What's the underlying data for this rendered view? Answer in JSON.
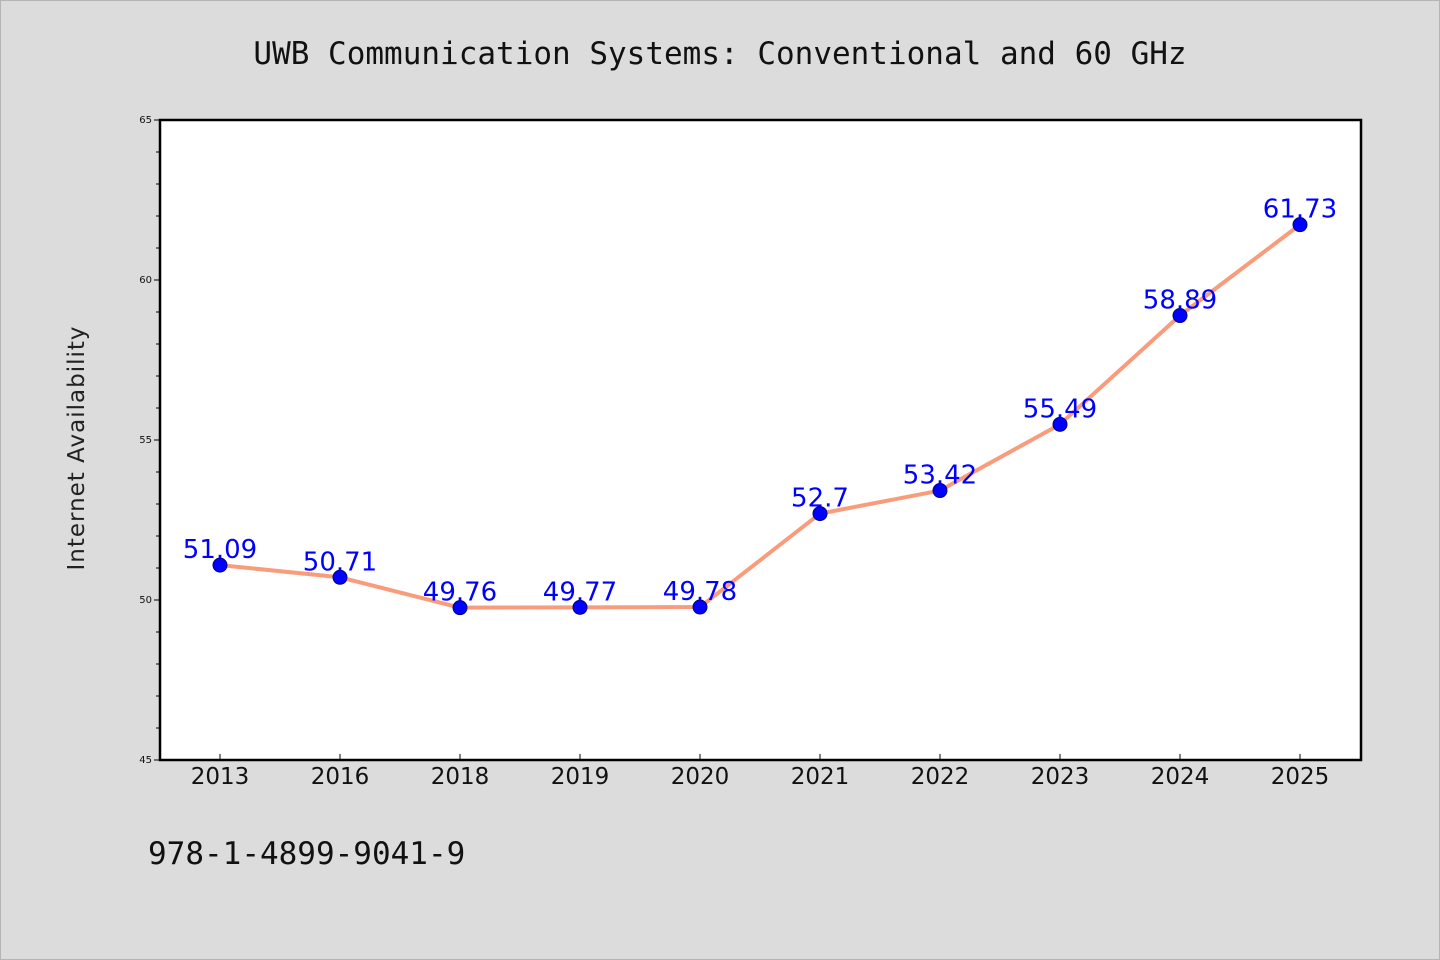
{
  "chart_data": {
    "type": "line",
    "title": "UWB Communication Systems: Conventional and 60 GHz",
    "xlabel": "",
    "ylabel": "Internet Availability",
    "categories": [
      "2013",
      "2016",
      "2018",
      "2019",
      "2020",
      "2021",
      "2022",
      "2023",
      "2024",
      "2025"
    ],
    "series": [
      {
        "values": [
          51.09,
          50.71,
          49.76,
          49.77,
          49.78,
          52.7,
          53.42,
          55.49,
          58.89,
          61.73
        ],
        "labels": [
          "51.09",
          "50.71",
          "49.76",
          "49.77",
          "49.78",
          "52.7",
          "53.42",
          "55.49",
          "58.89",
          "61.73"
        ],
        "line_color": "#f89c7c",
        "marker_color": "#0000ff"
      }
    ],
    "ylim": [
      45,
      65
    ],
    "yticks": [
      "45",
      "50",
      "55",
      "60",
      "65"
    ],
    "grid": false,
    "legend": "none"
  },
  "footer": {
    "code": "978-1-4899-9041-9"
  }
}
